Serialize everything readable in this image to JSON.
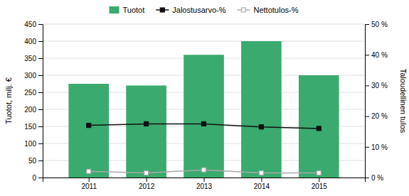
{
  "chart_data": {
    "type": "bar",
    "x": [
      2011,
      2012,
      2013,
      2014,
      2015
    ],
    "xlim": [
      2010.2,
      2015.8
    ],
    "xticks": [
      2011,
      2012,
      2013,
      2014,
      2015
    ],
    "ylabel": "Tuotot, milj. €",
    "y2label": "Taloudellinen tulos",
    "ylim": [
      0,
      450
    ],
    "yticks": [
      0,
      50,
      100,
      150,
      200,
      250,
      300,
      350,
      400,
      450
    ],
    "y2lim": [
      0,
      50
    ],
    "y2ticks": [
      {
        "value": 0,
        "label": "0 %"
      },
      {
        "value": 10,
        "label": "10 %"
      },
      {
        "value": 20,
        "label": "20 %"
      },
      {
        "value": 30,
        "label": "30 %"
      },
      {
        "value": 40,
        "label": "40 %"
      },
      {
        "value": 50,
        "label": "50 %"
      }
    ],
    "grid": true,
    "legend": "top",
    "series": [
      {
        "name": "Tuotot",
        "type": "bar",
        "color": "#3aaa6e",
        "values": [
          275,
          270,
          360,
          400,
          300
        ]
      },
      {
        "name": "Jalostusarvo-%",
        "type": "line",
        "axis": "y2",
        "color": "#111111",
        "marker": "square",
        "values": [
          17.0,
          17.5,
          17.5,
          16.5,
          16.0
        ]
      },
      {
        "name": "Nettotulos-%",
        "type": "line",
        "axis": "y2",
        "color": "#aaaaaa",
        "marker": "square-open",
        "values": [
          2.0,
          1.5,
          2.5,
          1.5,
          1.5
        ]
      }
    ]
  }
}
